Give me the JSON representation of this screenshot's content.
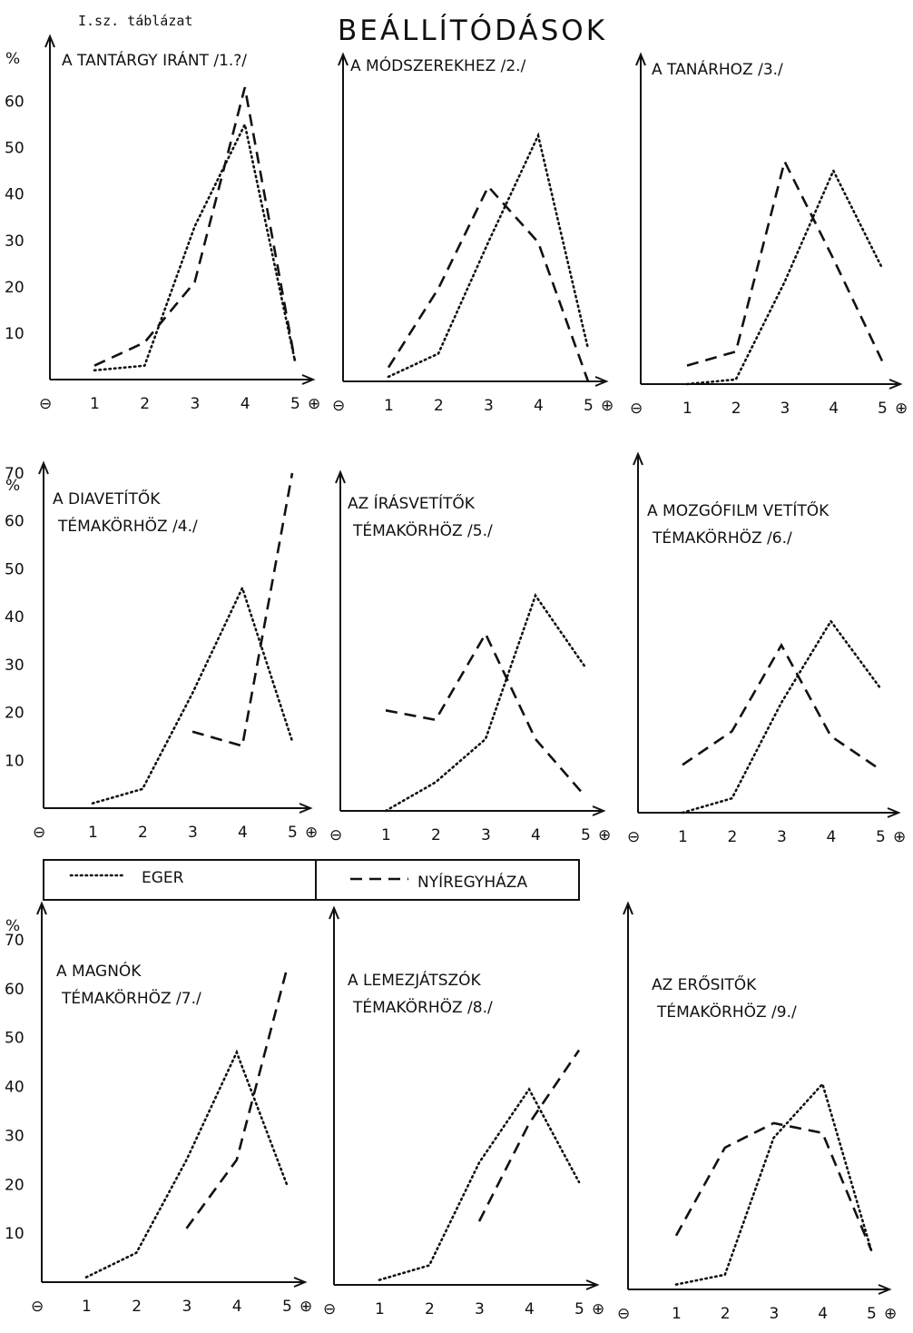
{
  "page": {
    "table_id": "I.sz. táblázat",
    "title": "BEÁLLÍTÓDÁSOK",
    "percent_label": "%",
    "minus_symbol": "⊖",
    "plus_symbol": "⊕"
  },
  "legend": {
    "eger": "EGER",
    "nyiregyhaza": "NYÍREGYHÁZA"
  },
  "chart_data": [
    {
      "type": "line",
      "title_lines": [
        "A TANTÁRGY IRÁNT /1.?/"
      ],
      "x": [
        1,
        2,
        3,
        4,
        5
      ],
      "ylim": [
        0,
        65
      ],
      "yticks": [
        10,
        20,
        30,
        40,
        50,
        60
      ],
      "series": [
        {
          "name": "EGER",
          "x": [
            1,
            2,
            3,
            4,
            5
          ],
          "values": [
            2,
            3,
            33,
            55,
            4
          ]
        },
        {
          "name": "NYÍREGYHÁZA",
          "x": [
            1,
            2,
            3,
            4,
            5
          ],
          "values": [
            3,
            8,
            21,
            63,
            4
          ]
        }
      ]
    },
    {
      "type": "line",
      "title_lines": [
        "A MÓDSZEREKHEZ /2./"
      ],
      "x": [
        1,
        2,
        3,
        4,
        5
      ],
      "ylim": [
        0,
        65
      ],
      "series": [
        {
          "name": "EGER",
          "x": [
            1,
            2,
            3,
            4,
            5
          ],
          "values": [
            1,
            6,
            30,
            53,
            7
          ]
        },
        {
          "name": "NYÍREGYHÁZA",
          "x": [
            1,
            2,
            3,
            4,
            5
          ],
          "values": [
            3,
            20,
            42,
            30,
            0
          ]
        }
      ]
    },
    {
      "type": "line",
      "title_lines": [
        "A TANÁRHOZ /3./"
      ],
      "x": [
        1,
        2,
        3,
        4,
        5
      ],
      "ylim": [
        0,
        65
      ],
      "series": [
        {
          "name": "EGER",
          "x": [
            1,
            2,
            3,
            4,
            5
          ],
          "values": [
            0,
            1,
            22,
            46,
            25
          ]
        },
        {
          "name": "NYÍREGYHÁZA",
          "x": [
            1,
            2,
            3,
            4,
            5
          ],
          "values": [
            4,
            7,
            48,
            27,
            5
          ]
        }
      ]
    },
    {
      "type": "line",
      "title_lines": [
        "A DIAVETÍTŐK",
        "TÉMAKÖRHÖZ /4./"
      ],
      "x": [
        1,
        2,
        3,
        4,
        5
      ],
      "ylim": [
        0,
        70
      ],
      "yticks": [
        10,
        20,
        30,
        40,
        50,
        60,
        70
      ],
      "series": [
        {
          "name": "EGER",
          "x": [
            1,
            2,
            3,
            4,
            5
          ],
          "values": [
            1,
            4,
            24,
            46,
            14
          ]
        },
        {
          "name": "NYÍREGYHÁZA",
          "x": [
            3,
            4,
            5
          ],
          "values": [
            16,
            13,
            70
          ]
        }
      ]
    },
    {
      "type": "line",
      "title_lines": [
        "AZ ÍRÁSVETÍTŐK",
        "TÉMAKÖRHÖZ /5./"
      ],
      "x": [
        1,
        2,
        3,
        4,
        5
      ],
      "ylim": [
        0,
        70
      ],
      "series": [
        {
          "name": "EGER",
          "x": [
            1,
            2,
            3,
            4,
            5
          ],
          "values": [
            0,
            6,
            15,
            45,
            30
          ]
        },
        {
          "name": "NYÍREGYHÁZA",
          "x": [
            1,
            2,
            3,
            4,
            5
          ],
          "values": [
            21,
            19,
            37,
            15,
            3
          ]
        }
      ]
    },
    {
      "type": "line",
      "title_lines": [
        "A MOZGÓFILM VETÍTŐK",
        "TÉMAKÖRHÖZ /6./"
      ],
      "x": [
        1,
        2,
        3,
        4,
        5
      ],
      "ylim": [
        0,
        70
      ],
      "series": [
        {
          "name": "EGER",
          "x": [
            1,
            2,
            3,
            4,
            5
          ],
          "values": [
            0,
            3,
            23,
            40,
            26
          ]
        },
        {
          "name": "NYÍREGYHÁZA",
          "x": [
            1,
            2,
            3,
            4,
            5
          ],
          "values": [
            10,
            17,
            35,
            16,
            9
          ]
        }
      ]
    },
    {
      "type": "line",
      "title_lines": [
        "A MAGNÓK",
        "TÉMAKÖRHÖZ /7./"
      ],
      "x": [
        1,
        2,
        3,
        4,
        5
      ],
      "ylim": [
        0,
        70
      ],
      "yticks": [
        10,
        20,
        30,
        40,
        50,
        60,
        70
      ],
      "ytick_labels": [
        "10",
        "20",
        "30",
        "40",
        "50",
        "60",
        "70"
      ],
      "series": [
        {
          "name": "EGER",
          "x": [
            1,
            2,
            3,
            4,
            5
          ],
          "values": [
            1,
            6,
            25,
            47,
            20
          ]
        },
        {
          "name": "NYÍREGYHÁZA",
          "x": [
            3,
            4,
            5
          ],
          "values": [
            11,
            25,
            64
          ]
        }
      ]
    },
    {
      "type": "line",
      "title_lines": [
        "A LEMEZJÁTSZÓK",
        "TÉMAKÖRHÖZ /8./"
      ],
      "x": [
        1,
        2,
        3,
        4,
        5
      ],
      "ylim": [
        0,
        70
      ],
      "series": [
        {
          "name": "EGER",
          "x": [
            1,
            2,
            3,
            4,
            5
          ],
          "values": [
            1,
            4,
            25,
            40,
            21
          ]
        },
        {
          "name": "NYÍREGYHÁZA",
          "x": [
            3,
            4,
            5
          ],
          "values": [
            13,
            33,
            48
          ]
        }
      ]
    },
    {
      "type": "line",
      "title_lines": [
        "AZ ERŐSITŐK",
        "TÉMAKÖRHÖZ /9./"
      ],
      "x": [
        1,
        2,
        3,
        4,
        5
      ],
      "ylim": [
        0,
        70
      ],
      "series": [
        {
          "name": "EGER",
          "x": [
            1,
            2,
            3,
            4,
            5
          ],
          "values": [
            1,
            3,
            31,
            42,
            8
          ]
        },
        {
          "name": "NYÍREGYHÁZA",
          "x": [
            1,
            2,
            3,
            4,
            5
          ],
          "values": [
            11,
            29,
            34,
            32,
            8
          ]
        }
      ]
    }
  ]
}
